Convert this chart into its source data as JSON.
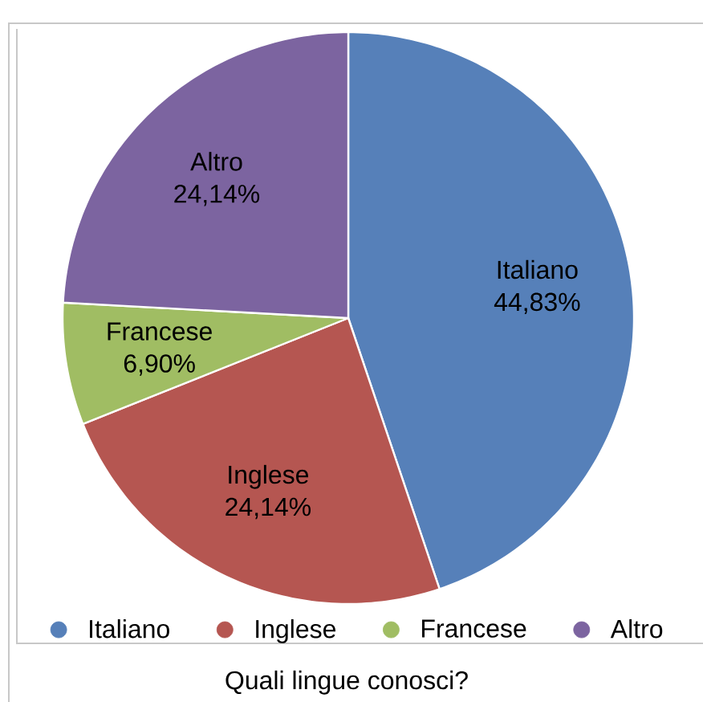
{
  "chart_data": {
    "type": "pie",
    "title": "Quali lingue conosci?",
    "categories": [
      "Italiano",
      "Inglese",
      "Francese",
      "Altro"
    ],
    "values": [
      44.83,
      24.14,
      6.9,
      24.14
    ],
    "value_labels": [
      "44,83%",
      "24,14%",
      "6,90%",
      "24,14%"
    ],
    "colors": [
      "#5680b9",
      "#b55651",
      "#a0bd63",
      "#7c64a0"
    ],
    "legend": "bottom"
  }
}
